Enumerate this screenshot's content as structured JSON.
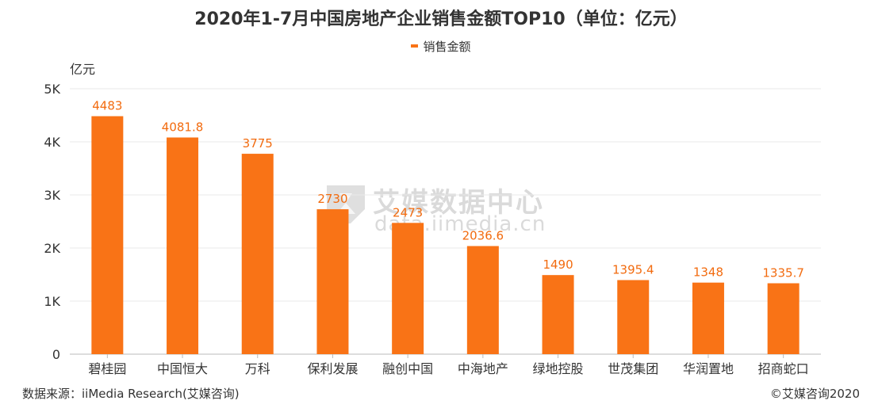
{
  "chart_data": {
    "type": "bar",
    "title": "2020年1-7月中国房地产企业销售金额TOP10（单位：亿元）",
    "ylabel": "亿元",
    "ylim": [
      0,
      5000
    ],
    "yticks": [
      0,
      1000,
      2000,
      3000,
      4000,
      5000
    ],
    "ytick_labels": [
      "0",
      "1K",
      "2K",
      "3K",
      "4K",
      "5K"
    ],
    "grid": true,
    "legend_position": "top-center",
    "categories": [
      "碧桂园",
      "中国恒大",
      "万科",
      "保利发展",
      "融创中国",
      "中海地产",
      "绿地控股",
      "世茂集团",
      "华润置地",
      "招商蛇口"
    ],
    "series": [
      {
        "name": "销售金额",
        "values": [
          4483,
          4081.8,
          3775,
          2730,
          2473,
          2036.6,
          1490,
          1395.4,
          1348,
          1335.7
        ],
        "labels": [
          "4483",
          "4081.8",
          "3775",
          "2730",
          "2473",
          "2036.6",
          "1490",
          "1395.4",
          "1348",
          "1335.7"
        ]
      }
    ]
  },
  "colors": {
    "bar": "#f97316",
    "label": "#f26b0f",
    "grid": "#e8e8e8",
    "axis": "#bbbbbb"
  },
  "footer": {
    "source": "数据来源：iiMedia Research(艾媒咨询)",
    "copyright": "©艾媒咨询2020"
  },
  "watermark": {
    "text": "艾媒数据中心",
    "url": "data.iimedia.cn"
  }
}
